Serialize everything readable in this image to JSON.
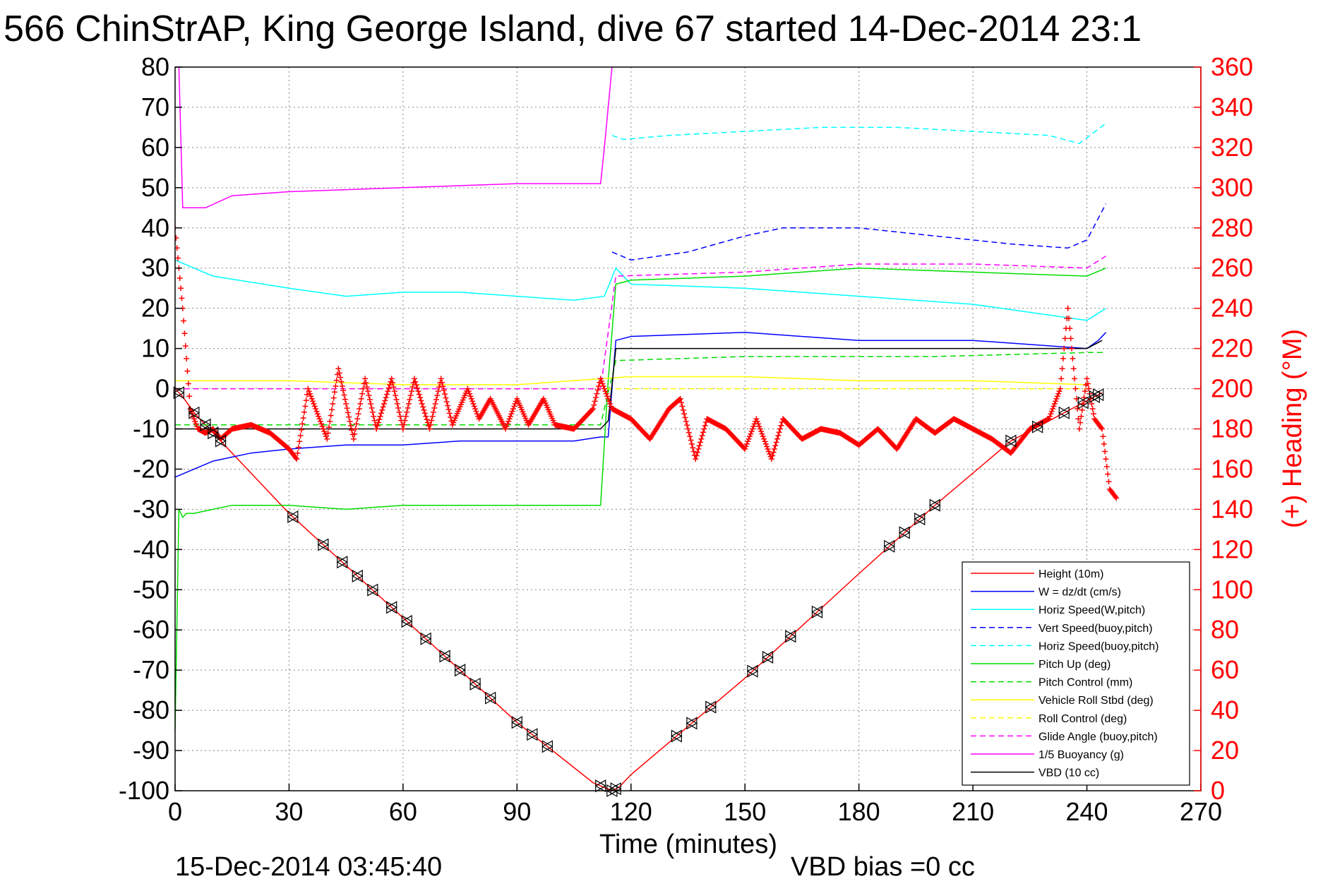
{
  "chart_data": {
    "type": "line",
    "title": "566 ChinStrAP, King George Island, dive 67 started 14-Dec-2014 23:1",
    "xlabel": "Time (minutes)",
    "ylabel_right": "(+) Heading (°M)",
    "footer_left": "15-Dec-2014 03:45:40",
    "footer_right": "VBD bias =0 cc",
    "xlim": [
      0,
      270
    ],
    "ylim": [
      -100,
      80
    ],
    "ylim_right": [
      0,
      360
    ],
    "xticks": [
      "0",
      "30",
      "60",
      "90",
      "120",
      "150",
      "180",
      "210",
      "240",
      "270"
    ],
    "yticks_left": [
      "80",
      "70",
      "60",
      "50",
      "40",
      "30",
      "20",
      "10",
      "0",
      "-10",
      "-20",
      "-30",
      "-40",
      "-50",
      "-60",
      "-70",
      "-80",
      "-90",
      "-100"
    ],
    "yticks_right": [
      "360",
      "340",
      "320",
      "300",
      "280",
      "260",
      "240",
      "220",
      "200",
      "180",
      "160",
      "140",
      "120",
      "100",
      "80",
      "60",
      "40",
      "20",
      "0"
    ],
    "grid": true,
    "legend_position": "bottom-right",
    "series": [
      {
        "name": "Height (10m)",
        "color": "#ff0000",
        "style": "solid",
        "x": [
          0,
          2,
          5,
          10,
          13,
          30,
          60,
          90,
          110,
          115,
          117,
          120,
          150,
          180,
          200,
          220,
          232,
          240,
          244
        ],
        "y": [
          0,
          -2,
          -6,
          -11,
          -14,
          -31,
          -57,
          -83,
          -98,
          -100,
          -99,
          -96,
          -72,
          -46,
          -29,
          -13,
          -7,
          -3,
          -1
        ]
      },
      {
        "name": "W = dz/dt (cm/s)",
        "color": "#0000ff",
        "style": "solid",
        "x": [
          0,
          5,
          10,
          15,
          20,
          30,
          45,
          60,
          75,
          90,
          105,
          112,
          114,
          116,
          120,
          150,
          180,
          210,
          240,
          243,
          245
        ],
        "y": [
          -22,
          -20,
          -18,
          -17,
          -16,
          -15,
          -14,
          -14,
          -13,
          -13,
          -13,
          -12,
          -12,
          12,
          13,
          14,
          12,
          12,
          10,
          12,
          14
        ]
      },
      {
        "name": "Horiz Speed(W,pitch)",
        "color": "#00ffff",
        "style": "solid",
        "x": [
          0,
          5,
          10,
          30,
          45,
          60,
          75,
          90,
          105,
          113,
          116,
          120,
          150,
          180,
          210,
          240,
          245
        ],
        "y": [
          32,
          30,
          28,
          25,
          23,
          24,
          24,
          23,
          22,
          23,
          30,
          26,
          25,
          23,
          21,
          17,
          20
        ]
      },
      {
        "name": "Vert Speed(buoy,pitch)",
        "color": "#0000ff",
        "style": "dashed",
        "x": [
          115,
          120,
          135,
          150,
          160,
          180,
          200,
          220,
          235,
          240,
          245
        ],
        "y": [
          34,
          32,
          34,
          38,
          40,
          40,
          38,
          36,
          35,
          37,
          46
        ]
      },
      {
        "name": "Horiz Speed(buoy,pitch)",
        "color": "#00ffff",
        "style": "dashed",
        "x": [
          115,
          118,
          130,
          150,
          170,
          190,
          210,
          230,
          238,
          245
        ],
        "y": [
          63,
          62,
          63,
          64,
          65,
          65,
          64,
          63,
          61,
          66
        ]
      },
      {
        "name": "Pitch Up (deg)",
        "color": "#00dd00",
        "style": "solid",
        "x": [
          0,
          1,
          2,
          3,
          5,
          10,
          15,
          30,
          45,
          60,
          75,
          90,
          105,
          112,
          114,
          116,
          120,
          150,
          180,
          210,
          240,
          245
        ],
        "y": [
          -85,
          -30,
          -32,
          -31,
          -31,
          -30,
          -29,
          -29,
          -30,
          -29,
          -29,
          -29,
          -29,
          -29,
          2,
          26,
          27,
          28,
          30,
          29,
          28,
          30
        ]
      },
      {
        "name": "Pitch Control (mm)",
        "color": "#00dd00",
        "style": "dashed",
        "x": [
          0,
          30,
          60,
          90,
          112,
          116,
          150,
          200,
          240,
          245
        ],
        "y": [
          -9,
          -9,
          -9,
          -9,
          -9,
          7,
          8,
          8,
          9,
          9
        ]
      },
      {
        "name": "Vehicle Roll Stbd (deg)",
        "color": "#ffff00",
        "style": "solid",
        "x": [
          0,
          30,
          60,
          90,
          120,
          150,
          180,
          210,
          240
        ],
        "y": [
          2,
          2,
          1,
          1,
          3,
          3,
          2,
          2,
          1
        ]
      },
      {
        "name": "Roll Control (deg)",
        "color": "#ffff00",
        "style": "dashed",
        "x": [
          0,
          30,
          60,
          90,
          120,
          150,
          180,
          210,
          240
        ],
        "y": [
          0,
          0,
          0,
          0,
          0,
          0,
          0,
          0,
          0
        ]
      },
      {
        "name": "Glide Angle (buoy,pitch)",
        "color": "#ff00ff",
        "style": "dashed",
        "x": [
          0,
          30,
          60,
          90,
          112,
          116,
          150,
          180,
          210,
          240,
          245
        ],
        "y": [
          0,
          0,
          0,
          0,
          0,
          28,
          29,
          31,
          31,
          30,
          33
        ]
      },
      {
        "name": "1/5 Buoyancy (g)",
        "color": "#ff00ff",
        "style": "solid",
        "x": [
          0,
          1,
          2,
          8,
          15,
          30,
          60,
          90,
          112,
          113,
          115
        ],
        "y": [
          80,
          80,
          45,
          45,
          48,
          49,
          50,
          51,
          51,
          60,
          80
        ]
      },
      {
        "name": "VBD (10 cc)",
        "color": "#000000",
        "style": "solid",
        "x": [
          0,
          30,
          60,
          90,
          112,
          114,
          116,
          120,
          150,
          180,
          210,
          240,
          244
        ],
        "y": [
          -10,
          -10,
          -10,
          -10,
          -10,
          -8,
          10,
          10,
          10,
          10,
          10,
          10,
          12
        ]
      }
    ],
    "heading": {
      "color": "#ff0000",
      "marker": "+",
      "axis": "right",
      "x": [
        0,
        2,
        4,
        6,
        8,
        10,
        12,
        15,
        20,
        25,
        30,
        32,
        35,
        40,
        43,
        47,
        50,
        53,
        57,
        60,
        63,
        67,
        70,
        73,
        77,
        80,
        83,
        87,
        90,
        93,
        97,
        100,
        105,
        110,
        112,
        115,
        120,
        125,
        130,
        133,
        137,
        140,
        145,
        150,
        153,
        157,
        160,
        165,
        170,
        175,
        180,
        185,
        190,
        195,
        200,
        205,
        210,
        215,
        220,
        225,
        230,
        233,
        235,
        238,
        240,
        242,
        244,
        246,
        248
      ],
      "y": [
        280,
        240,
        190,
        180,
        178,
        180,
        175,
        180,
        182,
        178,
        170,
        165,
        200,
        175,
        210,
        175,
        205,
        180,
        205,
        180,
        205,
        180,
        205,
        182,
        200,
        185,
        195,
        180,
        195,
        182,
        195,
        182,
        180,
        190,
        205,
        190,
        185,
        175,
        190,
        195,
        165,
        185,
        180,
        170,
        185,
        165,
        185,
        175,
        180,
        178,
        172,
        180,
        170,
        185,
        178,
        185,
        180,
        175,
        168,
        180,
        185,
        200,
        240,
        180,
        205,
        185,
        180,
        150,
        145
      ]
    },
    "depth_markers": {
      "marker": "triangle",
      "series": "Height (10m)",
      "x": [
        1,
        5,
        8,
        10,
        12,
        31,
        39,
        44,
        48,
        52,
        57,
        61,
        66,
        71,
        75,
        79,
        83,
        90,
        94,
        98,
        112,
        115,
        116,
        132,
        136,
        141,
        152,
        156,
        162,
        169,
        188,
        192,
        196,
        200,
        220,
        227,
        234,
        239,
        242,
        243
      ]
    }
  }
}
